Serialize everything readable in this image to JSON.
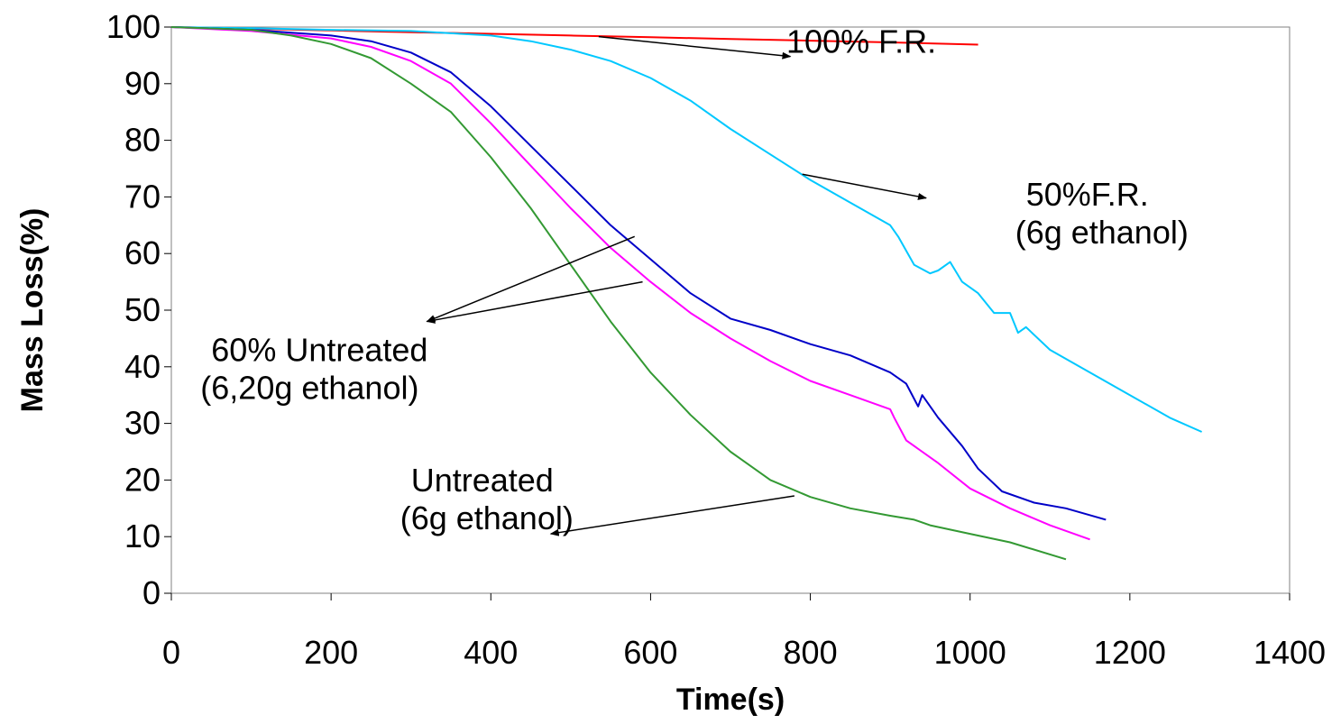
{
  "chart_data": {
    "type": "line",
    "title": "",
    "xlabel": "Time(s)",
    "ylabel": "Mass Loss(%)",
    "xlim": [
      0,
      1400
    ],
    "ylim": [
      0,
      100
    ],
    "x_ticks": [
      0,
      200,
      400,
      600,
      800,
      1000,
      1200,
      1400
    ],
    "y_ticks": [
      0,
      10,
      20,
      30,
      40,
      50,
      60,
      70,
      80,
      90,
      100
    ],
    "grid": false,
    "legend": "none",
    "series": [
      {
        "color": "#ff0000",
        "points": [
          [
            0,
            100
          ],
          [
            100,
            99.7
          ],
          [
            200,
            99.4
          ],
          [
            300,
            99.1
          ],
          [
            400,
            98.8
          ],
          [
            500,
            98.5
          ],
          [
            600,
            98.2
          ],
          [
            700,
            97.9
          ],
          [
            800,
            97.6
          ],
          [
            900,
            97.3
          ],
          [
            1010,
            96.9
          ]
        ]
      },
      {
        "color": "#00c8ff",
        "points": [
          [
            0,
            100
          ],
          [
            100,
            99.8
          ],
          [
            200,
            99.5
          ],
          [
            300,
            99.3
          ],
          [
            400,
            98.5
          ],
          [
            450,
            97.5
          ],
          [
            500,
            96
          ],
          [
            550,
            94
          ],
          [
            600,
            91
          ],
          [
            650,
            87
          ],
          [
            700,
            82
          ],
          [
            750,
            77.5
          ],
          [
            800,
            73
          ],
          [
            850,
            69
          ],
          [
            900,
            65
          ],
          [
            910,
            63
          ],
          [
            930,
            58
          ],
          [
            950,
            56.5
          ],
          [
            960,
            57
          ],
          [
            975,
            58.5
          ],
          [
            990,
            55
          ],
          [
            1010,
            53
          ],
          [
            1030,
            49.5
          ],
          [
            1050,
            49.5
          ],
          [
            1060,
            46
          ],
          [
            1070,
            47
          ],
          [
            1100,
            43
          ],
          [
            1150,
            39
          ],
          [
            1200,
            35
          ],
          [
            1250,
            31
          ],
          [
            1290,
            28.5
          ]
        ]
      },
      {
        "color": "#0000c8",
        "points": [
          [
            0,
            100
          ],
          [
            100,
            99.5
          ],
          [
            200,
            98.5
          ],
          [
            250,
            97.5
          ],
          [
            300,
            95.5
          ],
          [
            350,
            92
          ],
          [
            400,
            86
          ],
          [
            450,
            79
          ],
          [
            500,
            72
          ],
          [
            550,
            65
          ],
          [
            600,
            59
          ],
          [
            650,
            53
          ],
          [
            700,
            48.5
          ],
          [
            750,
            46.5
          ],
          [
            800,
            44
          ],
          [
            850,
            42
          ],
          [
            900,
            39
          ],
          [
            920,
            37
          ],
          [
            935,
            33
          ],
          [
            940,
            35
          ],
          [
            960,
            31
          ],
          [
            990,
            26
          ],
          [
            1010,
            22
          ],
          [
            1040,
            18
          ],
          [
            1080,
            16
          ],
          [
            1120,
            15
          ],
          [
            1170,
            13
          ]
        ]
      },
      {
        "color": "#ff00ff",
        "points": [
          [
            0,
            100
          ],
          [
            100,
            99.3
          ],
          [
            200,
            98
          ],
          [
            250,
            96.5
          ],
          [
            300,
            94
          ],
          [
            350,
            90
          ],
          [
            400,
            83
          ],
          [
            450,
            75.5
          ],
          [
            500,
            68
          ],
          [
            550,
            61
          ],
          [
            600,
            55
          ],
          [
            650,
            49.5
          ],
          [
            700,
            45
          ],
          [
            750,
            41
          ],
          [
            800,
            37.5
          ],
          [
            850,
            35
          ],
          [
            900,
            32.5
          ],
          [
            905,
            31
          ],
          [
            920,
            27
          ],
          [
            960,
            23
          ],
          [
            1000,
            18.5
          ],
          [
            1050,
            15
          ],
          [
            1100,
            12
          ],
          [
            1150,
            9.5
          ]
        ]
      },
      {
        "color": "#339933",
        "points": [
          [
            0,
            100
          ],
          [
            100,
            99.5
          ],
          [
            150,
            98.5
          ],
          [
            200,
            97
          ],
          [
            250,
            94.5
          ],
          [
            300,
            90
          ],
          [
            350,
            85
          ],
          [
            400,
            77
          ],
          [
            450,
            68
          ],
          [
            500,
            58
          ],
          [
            550,
            48
          ],
          [
            600,
            39
          ],
          [
            650,
            31.5
          ],
          [
            700,
            25
          ],
          [
            750,
            20
          ],
          [
            800,
            17
          ],
          [
            850,
            15
          ],
          [
            900,
            13.7
          ],
          [
            930,
            13
          ],
          [
            950,
            12
          ],
          [
            1000,
            10.5
          ],
          [
            1050,
            9
          ],
          [
            1120,
            6
          ]
        ]
      }
    ],
    "annotations": [
      {
        "lines": [
          "100% F.R."
        ],
        "anchor": [
          770,
          95.5
        ],
        "arrows": [
          [
            [
              535,
              98.3
            ],
            [
              775,
              94.8
            ]
          ]
        ]
      },
      {
        "lines": [
          "50%F.R.",
          "(6g ethanol)"
        ],
        "anchor": [
          1070,
          68.5
        ],
        "arrows": [
          [
            [
              790,
              74
            ],
            [
              945,
              69.8
            ]
          ]
        ]
      },
      {
        "lines": [
          "60% Untreated",
          "(6,20g ethanol)"
        ],
        "anchor": [
          50,
          41
        ],
        "arrows": [
          [
            [
              580,
              63
            ],
            [
              320,
              48
            ]
          ],
          [
            [
              590,
              55
            ],
            [
              320,
              48
            ]
          ]
        ]
      },
      {
        "lines": [
          "Untreated",
          "(6g ethanol)"
        ],
        "anchor": [
          300,
          18
        ],
        "arrows": [
          [
            [
              780,
              17.2
            ],
            [
              475,
              10.5
            ]
          ]
        ]
      }
    ]
  }
}
